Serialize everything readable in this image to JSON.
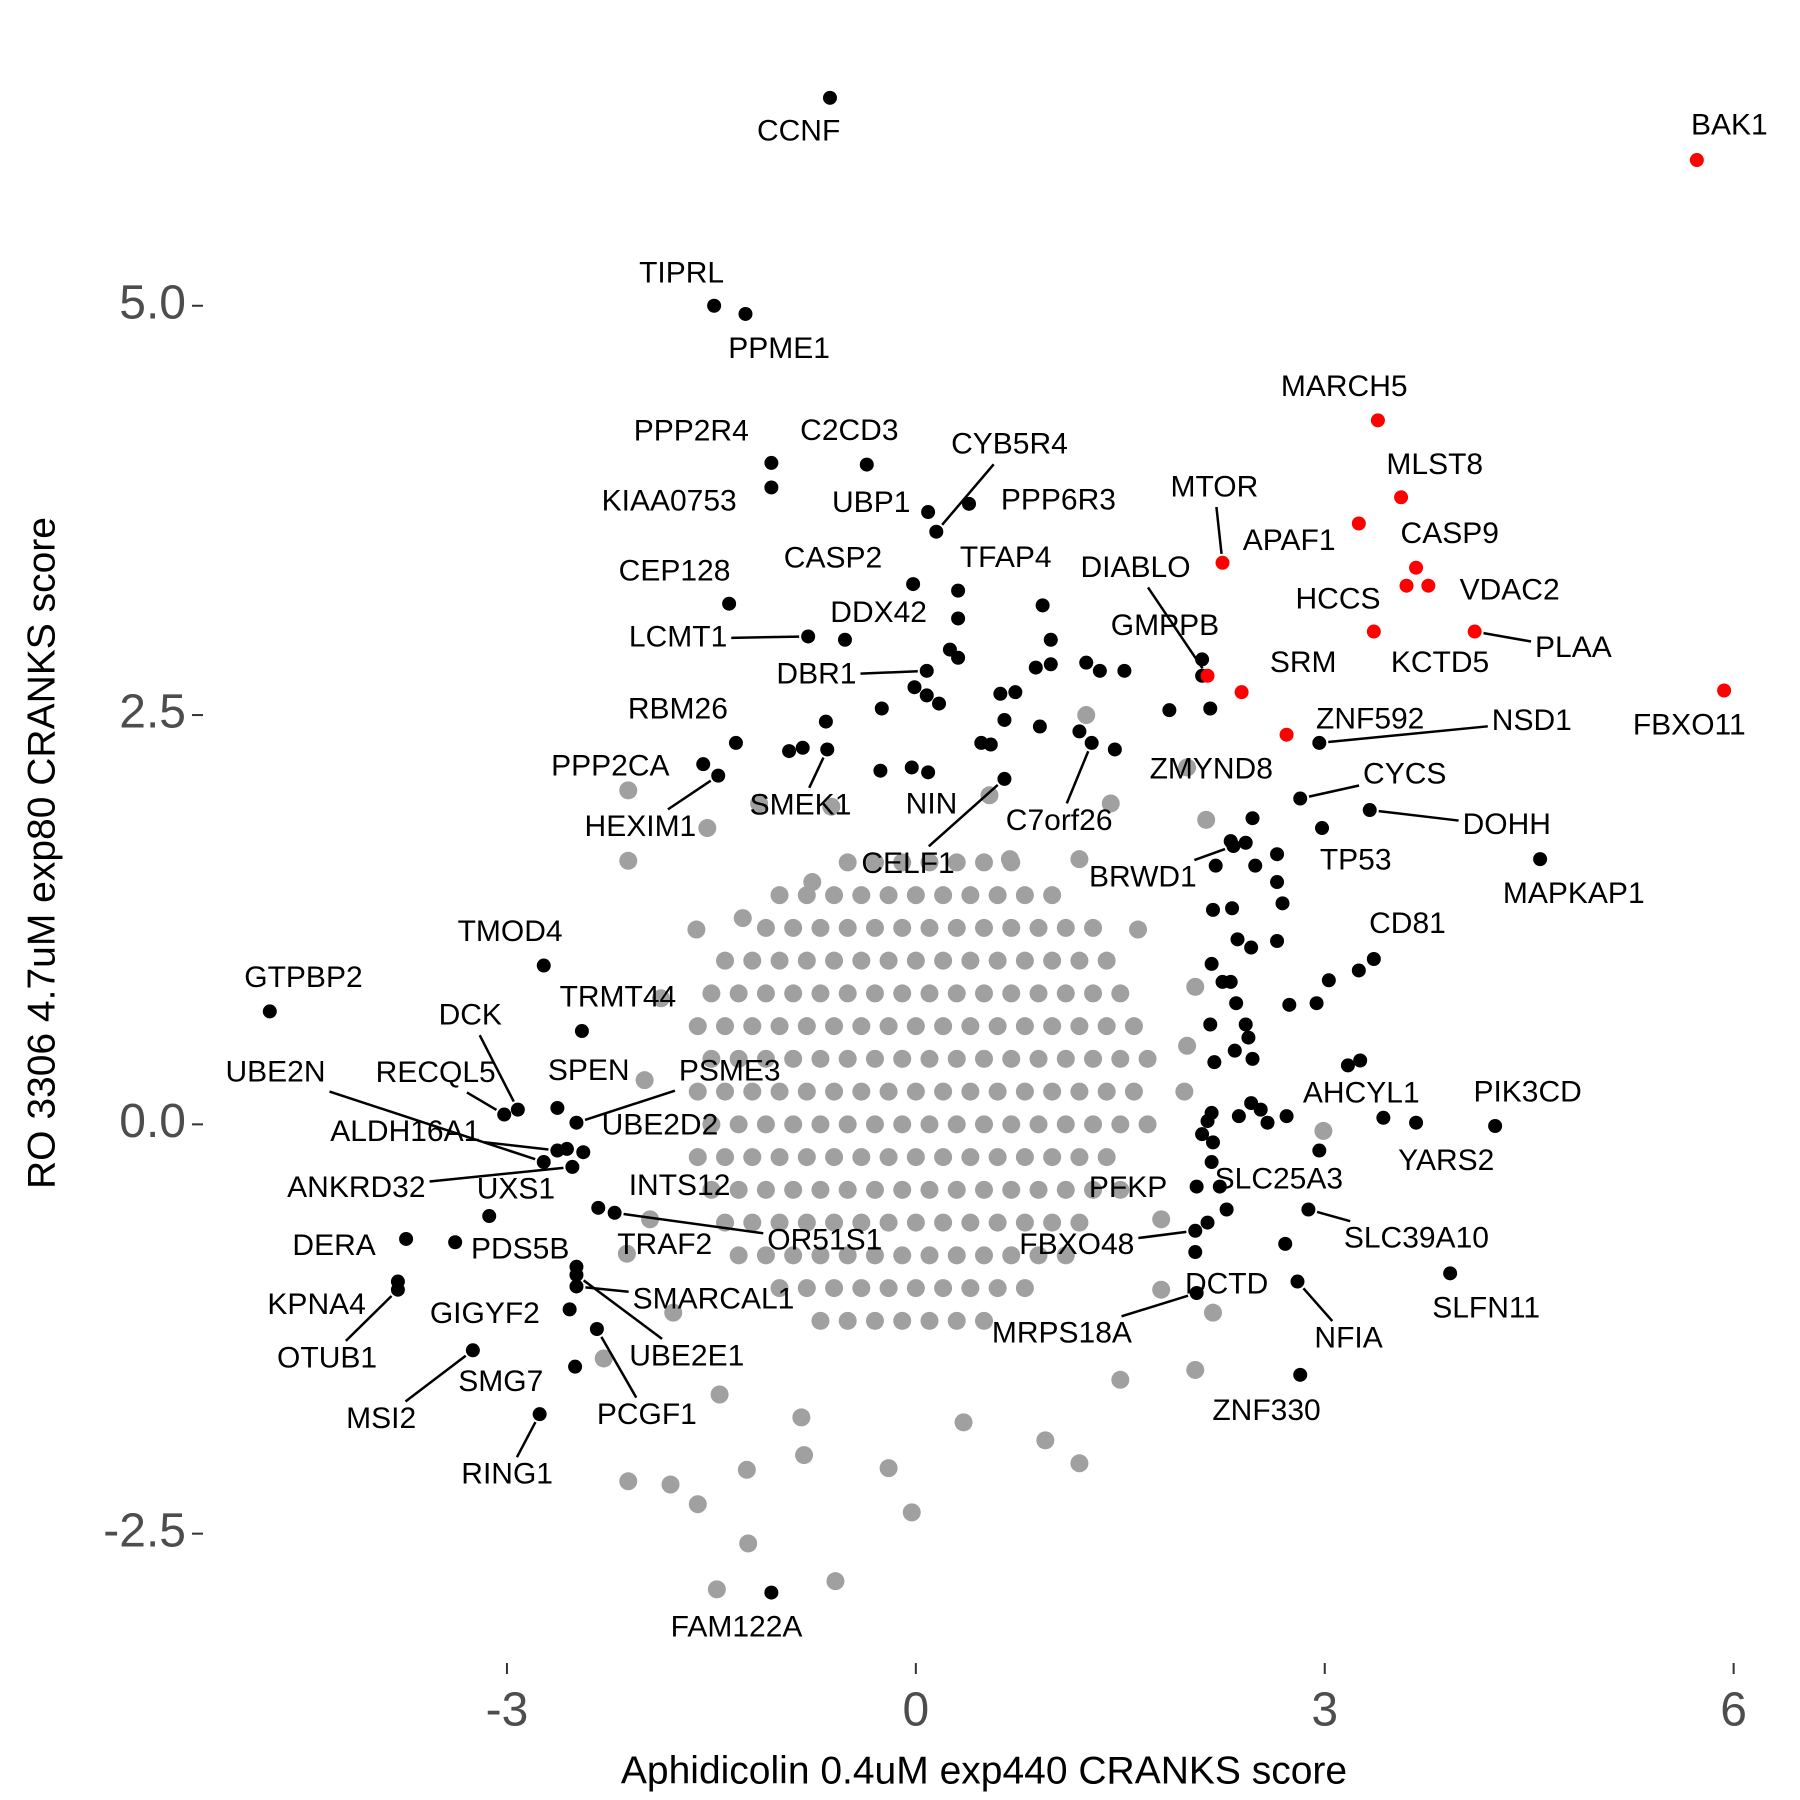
{
  "chart_data": {
    "type": "scatter",
    "xlabel": "Aphidicolin 0.4uM exp440 CRANKS score",
    "ylabel": "RO 3306 4.7uM exp80 CRANKS score",
    "xlim": [
      -5.23,
      6.23
    ],
    "ylim": [
      -3.29,
      6.44
    ],
    "xticks": [
      -3,
      0,
      3,
      6
    ],
    "yticks": [
      -2.5,
      {
        "value": 0,
        "label": "0.0"
      },
      2.5,
      {
        "value": 5,
        "label": "5.0"
      }
    ],
    "grid": false,
    "series": [
      {
        "color": "#a0a0a0",
        "x": [
          -0.5,
          -0.3,
          -0.1,
          0.1,
          0.3,
          0.5,
          0.7,
          -1.0,
          -0.8,
          -0.6,
          -0.4,
          -0.2,
          0,
          0.2,
          0.4,
          0.6,
          0.8,
          1.0,
          -1.1,
          -0.9,
          -0.7,
          -0.5,
          -0.3,
          -0.1,
          0.1,
          0.3,
          0.5,
          0.7,
          0.9,
          1.1,
          1.3,
          -1.4,
          -1.2,
          -1.0,
          -0.8,
          -0.6,
          -0.4,
          -0.2,
          0,
          0.2,
          0.4,
          0.6,
          0.8,
          1.0,
          1.2,
          1.4,
          -1.5,
          -1.3,
          -1.1,
          -0.9,
          -0.7,
          -0.5,
          -0.3,
          -0.1,
          0.1,
          0.3,
          0.5,
          0.7,
          0.9,
          1.1,
          1.3,
          1.5,
          -1.6,
          -1.4,
          -1.2,
          -1.0,
          -0.8,
          -0.6,
          -0.4,
          -0.2,
          0,
          0.2,
          0.4,
          0.6,
          0.8,
          1.0,
          1.2,
          1.4,
          1.6,
          -1.5,
          -1.3,
          -1.1,
          -0.9,
          -0.7,
          -0.5,
          -0.3,
          -0.1,
          0.1,
          0.3,
          0.5,
          0.7,
          0.9,
          1.1,
          1.3,
          1.5,
          1.7,
          -1.6,
          -1.4,
          -1.2,
          -1.0,
          -0.8,
          -0.6,
          -0.4,
          -0.2,
          0,
          0.2,
          0.4,
          0.6,
          0.8,
          1.0,
          1.2,
          1.4,
          1.6,
          -1.5,
          -1.3,
          -1.1,
          -0.9,
          -0.7,
          -0.5,
          -0.3,
          -0.1,
          0.1,
          0.3,
          0.5,
          0.7,
          0.9,
          1.1,
          1.3,
          1.5,
          1.7,
          -1.6,
          -1.4,
          -1.2,
          -1.0,
          -0.8,
          -0.6,
          -0.4,
          -0.2,
          0,
          0.2,
          0.4,
          0.6,
          0.8,
          1.0,
          1.2,
          1.4,
          -1.5,
          -1.3,
          -1.1,
          -0.9,
          -0.7,
          -0.5,
          -0.3,
          -0.1,
          0.1,
          0.3,
          0.5,
          0.7,
          0.9,
          1.1,
          1.3,
          1.5,
          -1.4,
          -1.2,
          -1.0,
          -0.8,
          -0.6,
          -0.4,
          -0.2,
          0,
          0.2,
          0.4,
          0.6,
          0.8,
          1.0,
          1.2,
          -1.3,
          -1.1,
          -0.9,
          -0.7,
          -0.5,
          -0.3,
          -0.1,
          0.1,
          0.3,
          0.5,
          0.7,
          0.9,
          1.1,
          -1.0,
          -0.8,
          -0.6,
          -0.4,
          -0.2,
          0,
          0.2,
          0.4,
          0.6,
          0.8,
          -0.7,
          -0.5,
          -0.3,
          -0.1,
          0.1,
          0.3,
          0.5,
          -2.11,
          -1.53,
          -2.11,
          1.25,
          1.99,
          2.13,
          1.43,
          0.54,
          -1.15,
          -0.62,
          -0.03,
          -0.59,
          -1.23,
          -1.46,
          -1.8,
          -2.11,
          -1.6,
          -1.24,
          -0.82,
          -0.2,
          1.2,
          0.95,
          1.5,
          2.05,
          2.18,
          1.8,
          2.99,
          1.97,
          1.99,
          2.05,
          -1.61,
          -1.87,
          -1.99,
          -1.95,
          -2.12,
          -1.78,
          -2.29,
          -1.44,
          -0.84,
          0.35,
          1.8,
          1.63,
          1.2,
          0.69,
          -0.76,
          -1.27
        ],
        "y": [
          1.6,
          1.6,
          1.6,
          1.6,
          1.6,
          1.6,
          1.6,
          1.4,
          1.4,
          1.4,
          1.4,
          1.4,
          1.4,
          1.4,
          1.4,
          1.4,
          1.4,
          1.4,
          1.2,
          1.2,
          1.2,
          1.2,
          1.2,
          1.2,
          1.2,
          1.2,
          1.2,
          1.2,
          1.2,
          1.2,
          1.2,
          1.0,
          1.0,
          1.0,
          1.0,
          1.0,
          1.0,
          1.0,
          1.0,
          1.0,
          1.0,
          1.0,
          1.0,
          1.0,
          1.0,
          1.0,
          0.8,
          0.8,
          0.8,
          0.8,
          0.8,
          0.8,
          0.8,
          0.8,
          0.8,
          0.8,
          0.8,
          0.8,
          0.8,
          0.8,
          0.8,
          0.8,
          0.6,
          0.6,
          0.6,
          0.6,
          0.6,
          0.6,
          0.6,
          0.6,
          0.6,
          0.6,
          0.6,
          0.6,
          0.6,
          0.6,
          0.6,
          0.6,
          0.6,
          0.4,
          0.4,
          0.4,
          0.4,
          0.4,
          0.4,
          0.4,
          0.4,
          0.4,
          0.4,
          0.4,
          0.4,
          0.4,
          0.4,
          0.4,
          0.4,
          0.4,
          0.2,
          0.2,
          0.2,
          0.2,
          0.2,
          0.2,
          0.2,
          0.2,
          0.2,
          0.2,
          0.2,
          0.2,
          0.2,
          0.2,
          0.2,
          0.2,
          0.2,
          0,
          0,
          0,
          0,
          0,
          0,
          0,
          0,
          0,
          0,
          0,
          0,
          0,
          0,
          0,
          0,
          0,
          -0.2,
          -0.2,
          -0.2,
          -0.2,
          -0.2,
          -0.2,
          -0.2,
          -0.2,
          -0.2,
          -0.2,
          -0.2,
          -0.2,
          -0.2,
          -0.2,
          -0.2,
          -0.2,
          -0.4,
          -0.4,
          -0.4,
          -0.4,
          -0.4,
          -0.4,
          -0.4,
          -0.4,
          -0.4,
          -0.4,
          -0.4,
          -0.4,
          -0.4,
          -0.4,
          -0.4,
          -0.4,
          -0.6,
          -0.6,
          -0.6,
          -0.6,
          -0.6,
          -0.6,
          -0.6,
          -0.6,
          -0.6,
          -0.6,
          -0.6,
          -0.6,
          -0.6,
          -0.6,
          -0.8,
          -0.8,
          -0.8,
          -0.8,
          -0.8,
          -0.8,
          -0.8,
          -0.8,
          -0.8,
          -0.8,
          -0.8,
          -0.8,
          -0.8,
          -1.0,
          -1.0,
          -1.0,
          -1.0,
          -1.0,
          -1.0,
          -1.0,
          -1.0,
          -1.0,
          -1.0,
          -1.2,
          -1.2,
          -1.2,
          -1.2,
          -1.2,
          -1.2,
          -1.2,
          1.61,
          1.81,
          2.04,
          2.5,
          2.18,
          1.86,
          1.96,
          2.01,
          1.96,
          1.94,
          -2.37,
          -2.79,
          -2.56,
          -2.84,
          -2.2,
          -2.18,
          -2.32,
          -2.11,
          -2.02,
          -2.1,
          -2.07,
          -1.93,
          -1.56,
          -1.5,
          -1.15,
          -1.01,
          -0.04,
          0.2,
          0.48,
          0.84,
          1.19,
          0.77,
          0.27,
          -0.58,
          -0.79,
          -1.15,
          -1.43,
          -1.65,
          -1.79,
          -1.82,
          -0.58,
          1.19,
          1.62,
          1.62,
          1.48,
          1.26
        ]
      },
      {
        "color": "#000000",
        "x": [
          0.93,
          0.99,
          0.88,
          0.99,
          1.25,
          1.35,
          1.53,
          1.86,
          2.16,
          2.1,
          1.2,
          0.91,
          0.73,
          0.62,
          0.65,
          -0.25,
          -0.66,
          -0.93,
          -0.83,
          -0.03,
          0.09,
          -0.01,
          0.08,
          0.17,
          0.25,
          0.31,
          0.31,
          0.48,
          0.55,
          2.47,
          2.31,
          2.42,
          2.49,
          2.65,
          2.2,
          2.65,
          2.69,
          2.18,
          2.32,
          2.65,
          2.36,
          2.46,
          2.17,
          2.31,
          2.25,
          2.35,
          2.74,
          2.94,
          3.03,
          3.25,
          2.16,
          2.42,
          2.44,
          2.34,
          2.47,
          2.19,
          3.17,
          3.26,
          2.46,
          2.53,
          2.37,
          2.58,
          2.72,
          2.17,
          2.14,
          2.1,
          2.18,
          2.17,
          2.96,
          2.23,
          2.71,
          2.14,
          -2.56
        ],
        "y": [
          3.17,
          2.96,
          2.79,
          2.81,
          2.82,
          2.77,
          2.77,
          2.53,
          2.54,
          2.74,
          2.4,
          2.43,
          2.64,
          2.63,
          2.47,
          2.54,
          2.46,
          2.28,
          2.3,
          2.18,
          2.15,
          2.67,
          2.62,
          2.57,
          2.9,
          2.85,
          3.09,
          2.33,
          2.32,
          1.87,
          1.73,
          1.72,
          1.58,
          1.65,
          1.58,
          1.48,
          1.35,
          1.31,
          1.32,
          1.12,
          1.13,
          1.08,
          0.98,
          0.87,
          0.87,
          0.74,
          0.73,
          0.74,
          0.88,
          0.94,
          0.61,
          0.61,
          0.53,
          0.45,
          0.4,
          0.38,
          0.36,
          0.39,
          0.13,
          0.09,
          0.05,
          0.01,
          0.05,
          0.07,
          0.02,
          -0.06,
          -0.11,
          -0.23,
          -0.16,
          -0.38,
          -0.73,
          -0.6,
          -0.15
        ]
      },
      {
        "color": "#000000",
        "labels": [
          "CCNF",
          "TIPRL",
          "PPME1",
          "PPP2R4",
          "KIAA0753",
          "C2CD3",
          "UBP1",
          "CYB5R4",
          "PPP6R3",
          "CASP2",
          "TFAP4",
          "CEP128",
          "LCMT1",
          "DDX42",
          "DBR1",
          "RBM26",
          "PPP2CA",
          "HEXIM1",
          "SMEK1",
          "NIN",
          "CELF1",
          "C7orf26",
          "ZMYND8",
          "GMPPB",
          "NSD1",
          "CYCS",
          "DOHH",
          "TP53",
          "BRWD1",
          "MAPKAP1",
          "CD81",
          "TMOD4",
          "GTPBP2",
          "TRMT44",
          "DCK",
          "UBE2N",
          "RECQL5",
          "SPEN",
          "PSME3",
          "ALDH16A1",
          "UBE2D2",
          "ANKRD32",
          "UXS1",
          "DERA",
          "INTS12",
          "OR51S1",
          "TRAF2",
          "PDS5B",
          "KPNA4",
          "OTUB1",
          "GIGYF2",
          "SMARCAL1",
          "MSI2",
          "SMG7",
          "UBE2E1",
          "PCGF1",
          "RING1",
          "FAM122A",
          "AHCYL1",
          "PIK3CD",
          "YARS2",
          "SLC25A3",
          "PFKP",
          "SLC39A10",
          "SLFN11",
          "FBXO48",
          "DCTD",
          "MRPS18A",
          "NFIA",
          "ZNF330"
        ],
        "x": [
          -0.63,
          -1.48,
          -1.25,
          -1.06,
          -1.06,
          -0.36,
          0.09,
          0.15,
          0.39,
          -0.02,
          0.31,
          -1.37,
          -0.79,
          -0.52,
          0.08,
          -1.32,
          -1.56,
          -1.45,
          -0.65,
          -0.26,
          0.65,
          1.29,
          1.46,
          2.1,
          2.96,
          2.82,
          3.33,
          2.98,
          2.33,
          4.58,
          3.36,
          -2.73,
          -4.74,
          -2.45,
          -2.92,
          -2.73,
          -3.02,
          -2.63,
          -2.49,
          -2.63,
          -2.44,
          -2.52,
          -3.13,
          -3.74,
          -2.33,
          -2.21,
          -2.49,
          -3.38,
          -3.8,
          -3.8,
          -2.54,
          -2.49,
          -3.25,
          -2.5,
          -2.49,
          -2.34,
          -2.76,
          -1.06,
          3.43,
          4.25,
          3.67,
          2.28,
          2.06,
          2.88,
          3.92,
          2.05,
          2.05,
          2.06,
          2.8,
          2.82
        ],
        "y": [
          6.27,
          5.0,
          4.95,
          4.04,
          3.89,
          4.03,
          3.74,
          3.62,
          3.79,
          3.3,
          3.26,
          3.18,
          2.98,
          2.96,
          2.77,
          2.33,
          2.2,
          2.13,
          2.29,
          2.16,
          2.11,
          2.33,
          2.29,
          2.84,
          2.33,
          1.99,
          1.92,
          1.81,
          1.7,
          1.62,
          1.01,
          0.97,
          0.69,
          0.57,
          0.09,
          -0.23,
          0.06,
          0.1,
          0.01,
          -0.16,
          -0.17,
          -0.26,
          -0.56,
          -0.7,
          -0.51,
          -0.54,
          -0.87,
          -0.72,
          -0.96,
          -1.01,
          -1.13,
          -0.99,
          -1.38,
          -1.48,
          -0.92,
          -1.25,
          -1.77,
          -2.86,
          0.04,
          -0.01,
          0.01,
          -0.52,
          -0.38,
          -0.52,
          -0.91,
          -0.65,
          -0.78,
          -1.03,
          -0.96,
          -1.53
        ]
      },
      {
        "color": "#ff0000",
        "labels": [
          "BAK1",
          "MARCH5",
          "MLST8",
          "APAF1",
          "CASP9",
          "VDAC2",
          "HCCS",
          "KCTD5",
          "PLAA",
          "FBXO11",
          "MTOR",
          "DIABLO",
          "SRM",
          "ZNF592"
        ],
        "x": [
          5.73,
          3.39,
          3.56,
          3.25,
          3.67,
          3.76,
          3.6,
          3.36,
          4.1,
          5.93,
          2.25,
          2.14,
          2.39,
          2.72
        ],
        "y": [
          5.89,
          4.3,
          3.83,
          3.67,
          3.4,
          3.29,
          3.29,
          3.01,
          3.01,
          2.65,
          3.43,
          2.74,
          2.64,
          2.38
        ]
      }
    ]
  }
}
